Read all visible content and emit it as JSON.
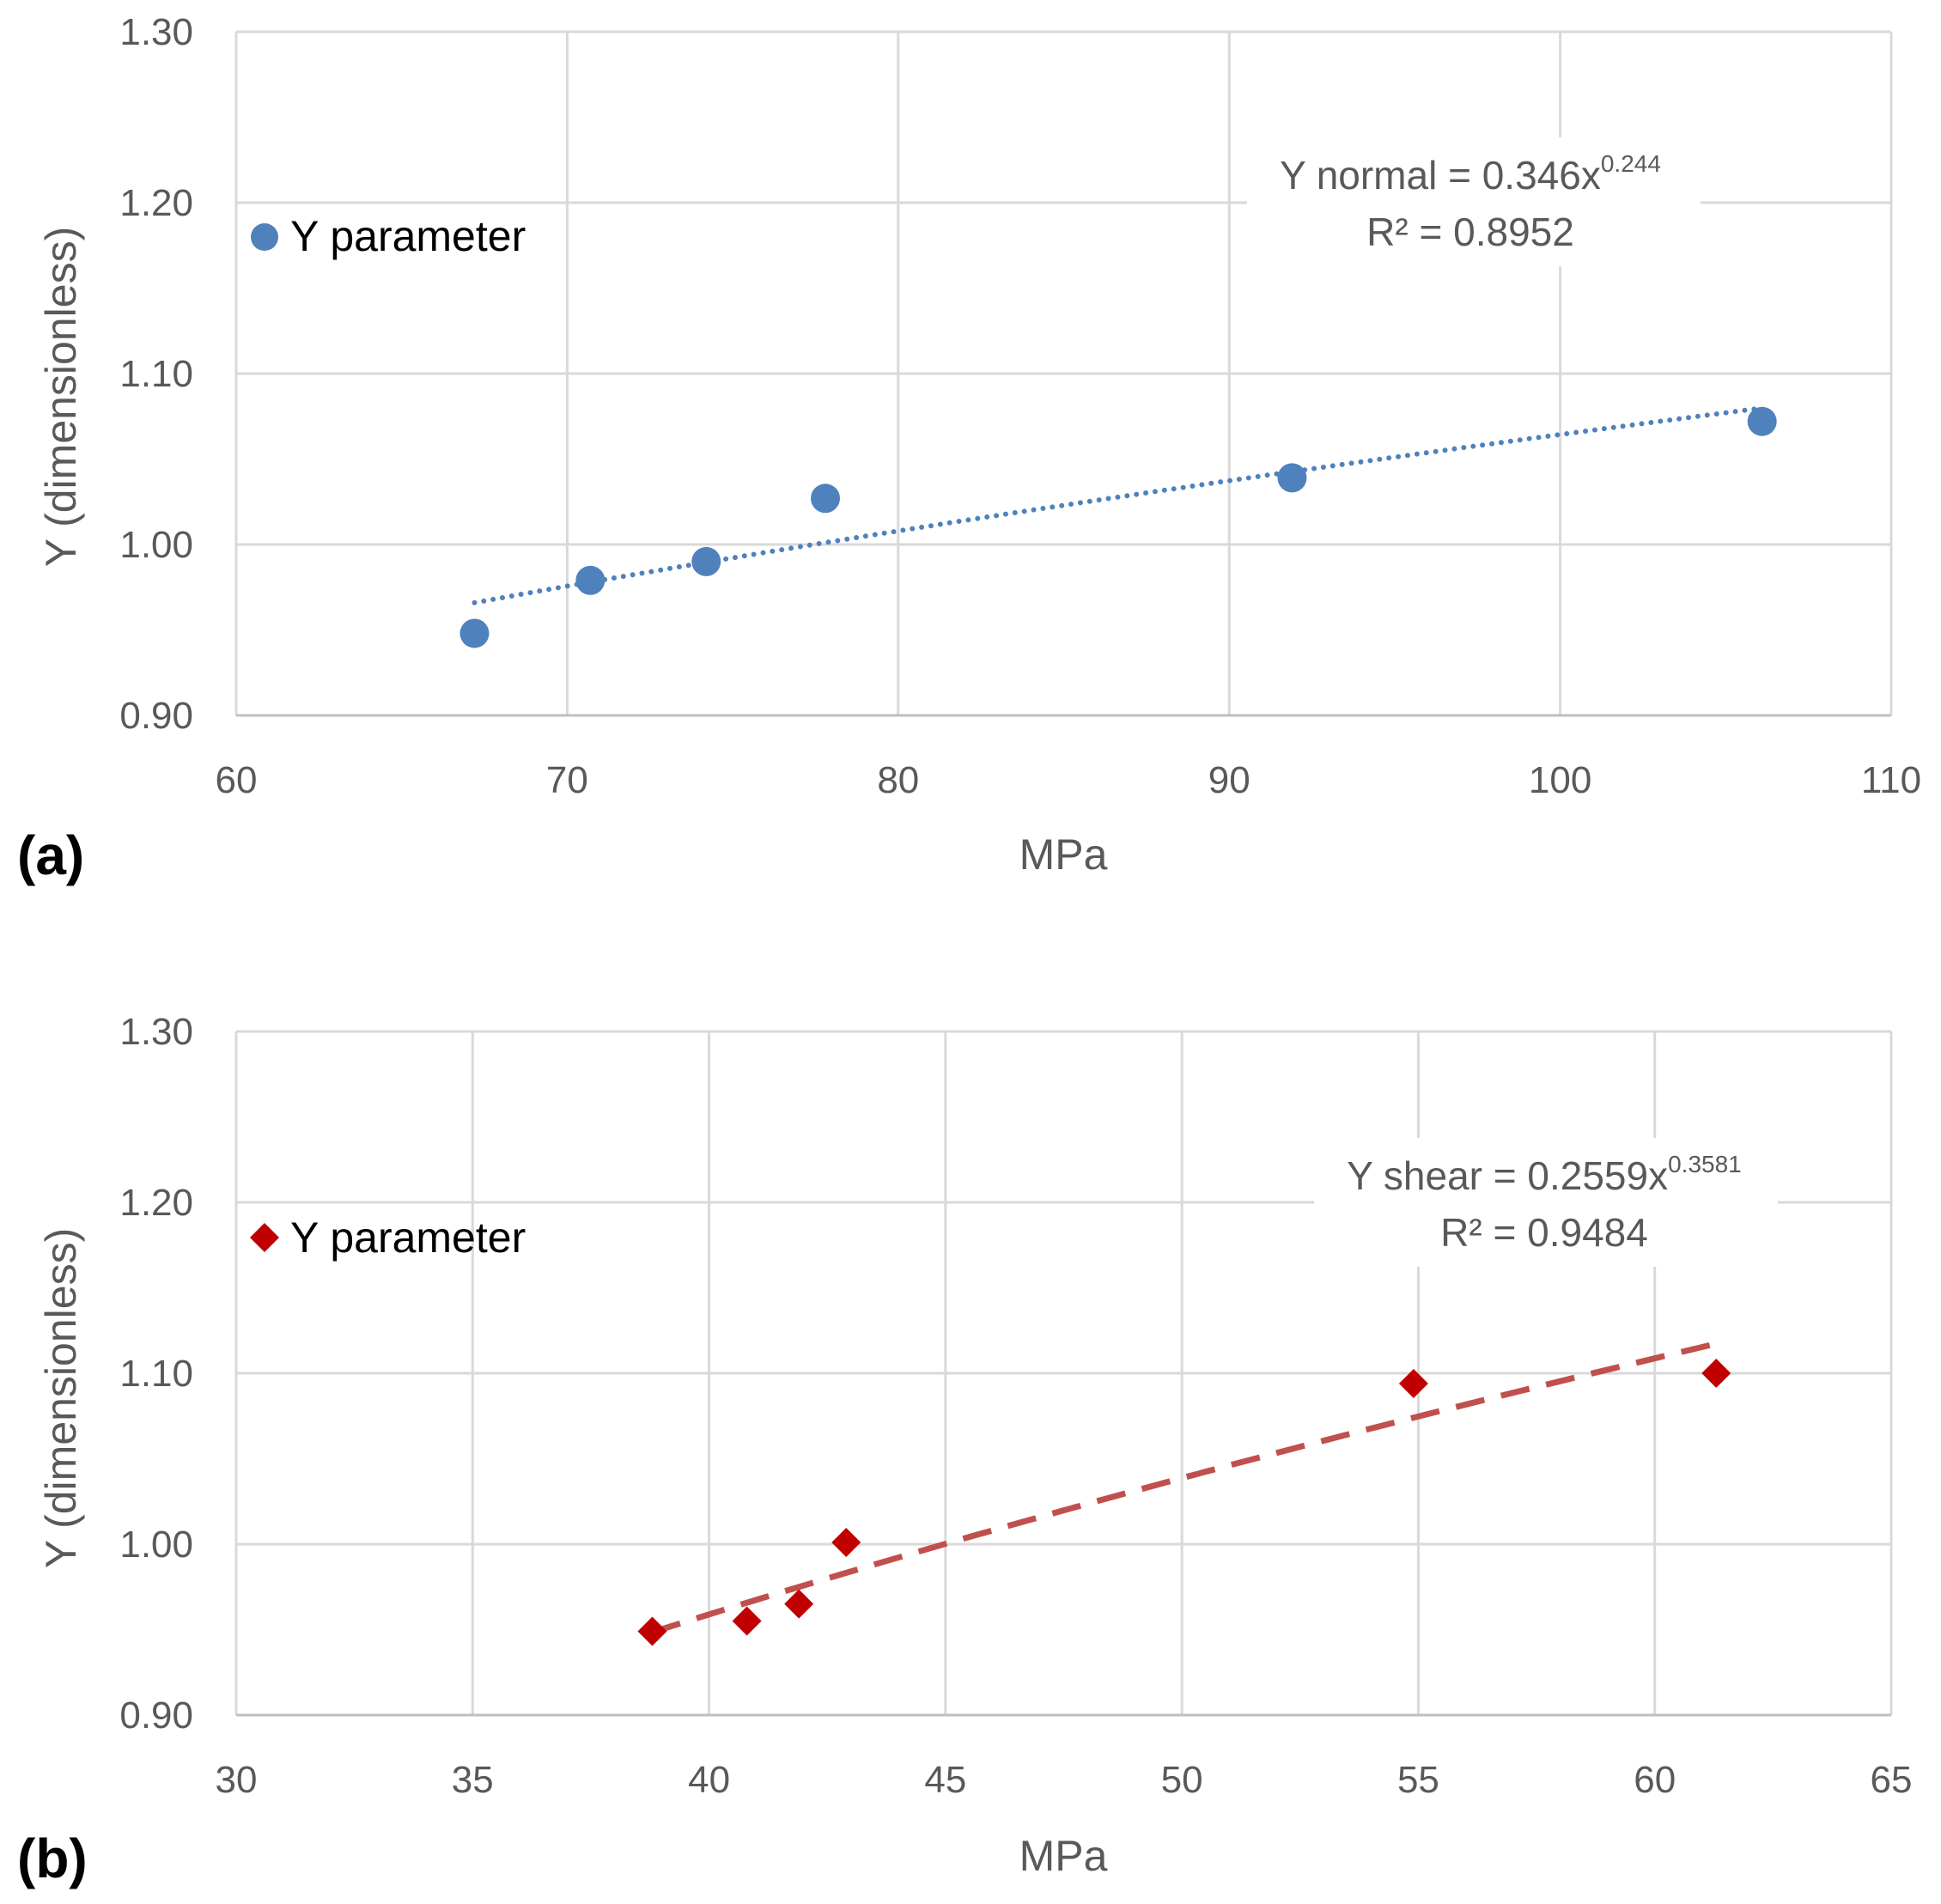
{
  "chart_data": [
    {
      "type": "scatter",
      "panel_label": "(a)",
      "xlabel": "MPa",
      "ylabel": "Y (dimensionless)",
      "xlim": [
        60,
        110
      ],
      "ylim": [
        0.9,
        1.3
      ],
      "xticks": [
        "60",
        "70",
        "80",
        "90",
        "100",
        "110"
      ],
      "xtick_values": [
        60,
        70,
        80,
        90,
        100,
        110
      ],
      "yticks": [
        "0.90",
        "1.00",
        "1.10",
        "1.20",
        "1.30"
      ],
      "ytick_values": [
        0.9,
        1.0,
        1.1,
        1.2,
        1.3
      ],
      "grid": true,
      "series": [
        {
          "name": "Y parameter",
          "marker": "circle",
          "color": "#4f81bd",
          "x": [
            67.2,
            70.7,
            74.2,
            77.8,
            91.9,
            106.1
          ],
          "y": [
            0.948,
            0.979,
            0.99,
            1.027,
            1.039,
            1.072
          ]
        }
      ],
      "trendline": {
        "type": "power",
        "style": "dotted",
        "color": "#4f81bd",
        "a": 0.346,
        "b": 0.244,
        "x_range": [
          67.2,
          106.1
        ]
      },
      "legend_label": "Y parameter",
      "legend_position": "top-left",
      "equation": {
        "prefix": "Y normal = 0.346x",
        "exponent": "0.244",
        "r2": "R² = 0.8952"
      }
    },
    {
      "type": "scatter",
      "panel_label": "(b)",
      "xlabel": "MPa",
      "ylabel": "Y (dimensionless)",
      "xlim": [
        30,
        65
      ],
      "ylim": [
        0.9,
        1.3
      ],
      "xticks": [
        "30",
        "35",
        "40",
        "45",
        "50",
        "55",
        "60",
        "65"
      ],
      "xtick_values": [
        30,
        35,
        40,
        45,
        50,
        55,
        60,
        65
      ],
      "yticks": [
        "0.90",
        "1.00",
        "1.10",
        "1.20",
        "1.30"
      ],
      "ytick_values": [
        0.9,
        1.0,
        1.1,
        1.2,
        1.3
      ],
      "grid": true,
      "series": [
        {
          "name": "Y parameter",
          "marker": "diamond",
          "color": "#c00000",
          "x": [
            38.8,
            40.8,
            41.9,
            42.9,
            54.9,
            61.3
          ],
          "y": [
            0.949,
            0.955,
            0.965,
            1.001,
            1.094,
            1.1
          ]
        }
      ],
      "trendline": {
        "type": "power",
        "style": "dashed",
        "color": "#c0504d",
        "a": 0.2559,
        "b": 0.3581,
        "x_range": [
          38.8,
          61.3
        ]
      },
      "legend_label": "Y parameter",
      "legend_position": "top-left",
      "equation": {
        "prefix": "Y shear = 0.2559x",
        "exponent": "0.3581",
        "r2": "R² = 0.9484"
      }
    }
  ]
}
